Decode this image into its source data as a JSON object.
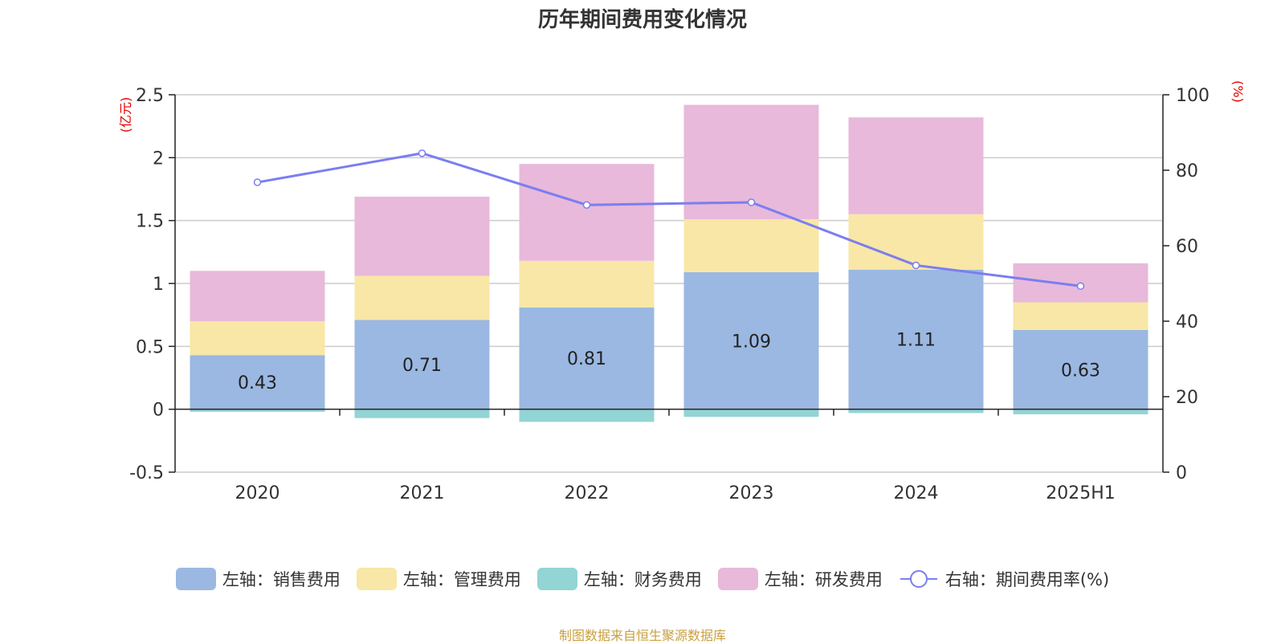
{
  "title": "历年期间费用变化情况",
  "source_note": "制图数据来自恒生聚源数据库",
  "chart_data": {
    "type": "bar",
    "stacked": true,
    "title": "历年期间费用变化情况",
    "categories": [
      "2020",
      "2021",
      "2022",
      "2023",
      "2024",
      "2025H1"
    ],
    "y_left": {
      "unit": "(亿元)",
      "min": -0.5,
      "max": 2.5,
      "ticks": [
        -0.5,
        0,
        0.5,
        1,
        1.5,
        2,
        2.5
      ],
      "tick_labels": [
        "-0.5",
        "0",
        "0.5",
        "1",
        "1.5",
        "2",
        "2.5"
      ]
    },
    "y_right": {
      "unit": "(%)",
      "min": 0,
      "max": 100,
      "ticks": [
        0,
        20,
        40,
        60,
        80,
        100
      ],
      "tick_labels": [
        "0",
        "20",
        "40",
        "60",
        "80",
        "100"
      ]
    },
    "series": [
      {
        "name": "左轴：销售费用",
        "kind": "bar",
        "axis": "left",
        "color": "#9bb8e2",
        "values": [
          0.43,
          0.71,
          0.81,
          1.09,
          1.11,
          0.63
        ],
        "labels": [
          "0.43",
          "0.71",
          "0.81",
          "1.09",
          "1.11",
          "0.63"
        ]
      },
      {
        "name": "左轴：管理费用",
        "kind": "bar",
        "axis": "left",
        "color": "#f8e7a6",
        "values": [
          0.27,
          0.35,
          0.37,
          0.42,
          0.44,
          0.22
        ]
      },
      {
        "name": "左轴：财务费用",
        "kind": "bar",
        "axis": "left",
        "color": "#93d4d4",
        "values": [
          -0.02,
          -0.07,
          -0.1,
          -0.06,
          -0.03,
          -0.04
        ]
      },
      {
        "name": "左轴：研发费用",
        "kind": "bar",
        "axis": "left",
        "color": "#e8b9da",
        "values": [
          0.4,
          0.63,
          0.77,
          0.91,
          0.77,
          0.31
        ]
      },
      {
        "name": "右轴：期间费用率(%)",
        "kind": "line",
        "axis": "right",
        "color": "#7b7ef0",
        "values": [
          76.8,
          84.5,
          70.8,
          71.5,
          54.8,
          49.3
        ]
      }
    ],
    "grid": true,
    "legend_position": "bottom"
  }
}
